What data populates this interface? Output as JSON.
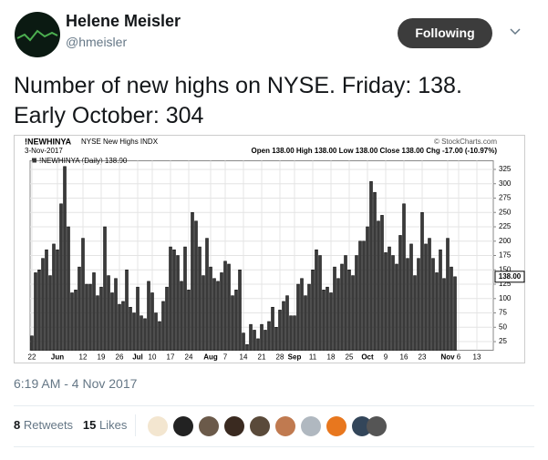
{
  "author": {
    "name": "Helene Meisler",
    "handle": "@hmeisler"
  },
  "follow_button": "Following",
  "tweet_text": "Number of new highs on NYSE. Friday: 138. Early October: 304",
  "timestamp": "6:19 AM - 4 Nov 2017",
  "stats": {
    "retweets_count": "8",
    "retweets_label": "Retweets",
    "likes_count": "15",
    "likes_label": "Likes"
  },
  "chart_data": {
    "type": "bar",
    "title": "!NEWHINYA",
    "subtitle": "NYSE New Highs INDX",
    "date": "3-Nov-2017",
    "quote": "Open 138.00  High 138.00  Low 138.00  Close 138.00  Chg -17.00 (-10.97%)",
    "source": "© StockCharts.com",
    "last_label": "138.00",
    "categories": [
      "22",
      null,
      null,
      null,
      null,
      null,
      null,
      "Jun",
      null,
      null,
      null,
      null,
      null,
      null,
      "12",
      null,
      null,
      null,
      null,
      "19",
      null,
      null,
      null,
      null,
      "26",
      null,
      null,
      null,
      null,
      "Jul",
      null,
      null,
      null,
      "10",
      null,
      null,
      null,
      null,
      "17",
      null,
      null,
      null,
      null,
      "24",
      null,
      null,
      null,
      null,
      null,
      "Aug",
      null,
      null,
      null,
      "7",
      null,
      null,
      null,
      null,
      "14",
      null,
      null,
      null,
      null,
      "21",
      null,
      null,
      null,
      null,
      "28",
      null,
      null,
      null,
      "Sep",
      null,
      null,
      null,
      null,
      "11",
      null,
      null,
      null,
      null,
      "18",
      null,
      null,
      null,
      null,
      "25",
      null,
      null,
      null,
      null,
      "Oct",
      null,
      null,
      null,
      null,
      "9",
      null,
      null,
      null,
      null,
      "16",
      null,
      null,
      null,
      null,
      "23",
      null,
      null,
      null,
      null,
      null,
      null,
      "Nov",
      null,
      null,
      "6",
      null,
      null,
      null,
      null,
      "13",
      null,
      null,
      null,
      null
    ],
    "series": [
      {
        "name": "!NEWHINYA (Daily) 138.00",
        "color": "#3a3a3a",
        "values": [
          35,
          145,
          150,
          170,
          185,
          140,
          195,
          185,
          265,
          330,
          225,
          110,
          115,
          155,
          205,
          125,
          125,
          145,
          105,
          120,
          225,
          140,
          110,
          135,
          90,
          95,
          150,
          85,
          75,
          120,
          70,
          65,
          130,
          110,
          75,
          60,
          95,
          120,
          190,
          185,
          175,
          130,
          190,
          115,
          250,
          235,
          190,
          140,
          205,
          155,
          135,
          130,
          145,
          165,
          160,
          105,
          115,
          150,
          40,
          20,
          55,
          45,
          30,
          55,
          45,
          60,
          85,
          50,
          80,
          95,
          105,
          70,
          70,
          125,
          135,
          105,
          125,
          150,
          185,
          175,
          115,
          120,
          110,
          155,
          135,
          160,
          175,
          150,
          140,
          175,
          200,
          200,
          225,
          304,
          285,
          235,
          245,
          180,
          190,
          175,
          160,
          210,
          265,
          170,
          195,
          140,
          170,
          250,
          195,
          205,
          170,
          145,
          185,
          135,
          205,
          155,
          138,
          null,
          null,
          null,
          null,
          null,
          null,
          null,
          null,
          null,
          null
        ]
      }
    ],
    "ylim": [
      10,
      340
    ],
    "yticks": [
      25,
      50,
      75,
      100,
      125,
      150,
      175,
      200,
      225,
      250,
      275,
      300,
      325
    ],
    "grid": true
  }
}
